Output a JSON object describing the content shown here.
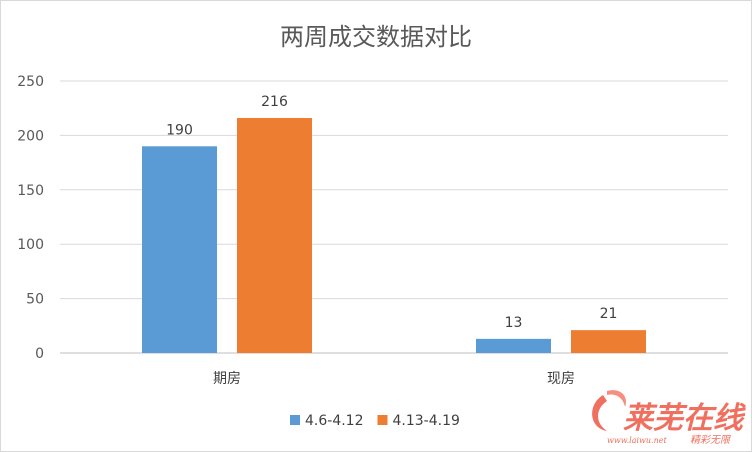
{
  "chart_data": {
    "type": "bar",
    "title": "两周成交数据对比",
    "categories": [
      "期房",
      "现房"
    ],
    "series": [
      {
        "name": "4.6-4.12",
        "values": [
          190,
          13
        ],
        "color": "#5b9bd5"
      },
      {
        "name": "4.13-4.19",
        "values": [
          216,
          21
        ],
        "color": "#ed7d31"
      }
    ],
    "ylim": [
      0,
      250
    ],
    "yticks": [
      0,
      50,
      100,
      150,
      200,
      250
    ],
    "grid": true,
    "data_labels": true,
    "legend": "bottom"
  },
  "watermark": {
    "name": "莱芜在线",
    "url": "www.laiwu.net",
    "slogan": "精彩无限",
    "color": "#f07060"
  }
}
